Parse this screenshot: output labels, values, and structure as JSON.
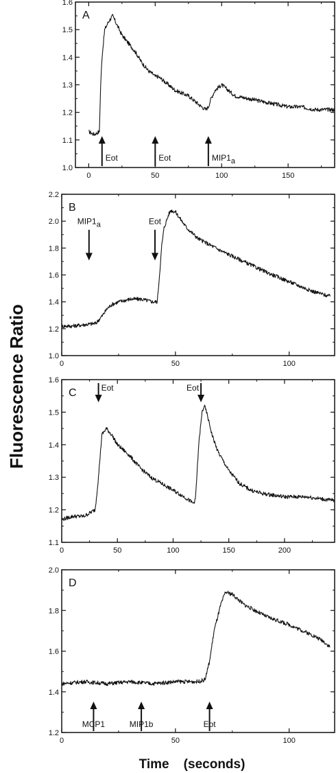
{
  "figure": {
    "ylabel": "Fluorescence  Ratio",
    "xlabel": "Time    (seconds)"
  },
  "chart_data": [
    {
      "type": "line",
      "panel": "A",
      "xlim": [
        -10,
        185
      ],
      "ylim": [
        1.0,
        1.6
      ],
      "xticks": [
        0,
        50,
        100,
        150
      ],
      "yticks": [
        1.0,
        1.1,
        1.2,
        1.3,
        1.4,
        1.5,
        1.6
      ],
      "series": [
        {
          "x": [
            0,
            4,
            8,
            9,
            10,
            12,
            15,
            18,
            21,
            25,
            30,
            35,
            40,
            45,
            48,
            50,
            52,
            55,
            60,
            65,
            70,
            75,
            80,
            85,
            88,
            90,
            92,
            95,
            100,
            105,
            110,
            120,
            130,
            140,
            150,
            160,
            170,
            180,
            185
          ],
          "y": [
            1.13,
            1.12,
            1.13,
            1.3,
            1.4,
            1.5,
            1.53,
            1.55,
            1.52,
            1.48,
            1.45,
            1.42,
            1.38,
            1.35,
            1.34,
            1.33,
            1.33,
            1.32,
            1.3,
            1.28,
            1.27,
            1.26,
            1.24,
            1.22,
            1.21,
            1.22,
            1.25,
            1.28,
            1.3,
            1.28,
            1.26,
            1.25,
            1.24,
            1.23,
            1.22,
            1.22,
            1.21,
            1.21,
            1.21
          ]
        }
      ],
      "annotations": [
        {
          "text": "Eot",
          "x": 10,
          "dir": "up"
        },
        {
          "text": "Eot",
          "x": 50,
          "dir": "up"
        },
        {
          "text": "MIP1",
          "sub": "a",
          "x": 90,
          "dir": "up"
        }
      ]
    },
    {
      "type": "line",
      "panel": "B",
      "xlim": [
        0,
        120
      ],
      "ylim": [
        1.0,
        2.2
      ],
      "xticks": [
        0,
        50,
        100
      ],
      "yticks": [
        1.0,
        1.2,
        1.4,
        1.6,
        1.8,
        2.0,
        2.2
      ],
      "series": [
        {
          "x": [
            0,
            5,
            10,
            15,
            18,
            20,
            22,
            25,
            30,
            35,
            40,
            42,
            43,
            44,
            45,
            47,
            48,
            50,
            52,
            55,
            60,
            70,
            80,
            90,
            100,
            110,
            118
          ],
          "y": [
            1.22,
            1.22,
            1.23,
            1.24,
            1.3,
            1.35,
            1.38,
            1.4,
            1.42,
            1.42,
            1.4,
            1.4,
            1.6,
            1.82,
            1.95,
            2.05,
            2.08,
            2.07,
            2.02,
            1.95,
            1.87,
            1.78,
            1.7,
            1.62,
            1.55,
            1.48,
            1.44
          ]
        }
      ],
      "annotations": [
        {
          "text": "MIP1",
          "sub": "a",
          "x": 12,
          "dir": "down"
        },
        {
          "text": "Eot",
          "x": 41,
          "dir": "down"
        }
      ]
    },
    {
      "type": "line",
      "panel": "C",
      "xlim": [
        0,
        245
      ],
      "ylim": [
        1.1,
        1.6
      ],
      "xticks": [
        0,
        50,
        100,
        150,
        200
      ],
      "yticks": [
        1.1,
        1.2,
        1.3,
        1.4,
        1.5,
        1.6
      ],
      "series": [
        {
          "x": [
            0,
            10,
            20,
            30,
            33,
            36,
            40,
            45,
            50,
            60,
            70,
            80,
            90,
            100,
            110,
            118,
            120,
            123,
            126,
            128,
            130,
            135,
            140,
            150,
            160,
            170,
            180,
            200,
            220,
            240,
            245
          ],
          "y": [
            1.17,
            1.18,
            1.18,
            1.2,
            1.3,
            1.43,
            1.45,
            1.43,
            1.4,
            1.37,
            1.33,
            1.3,
            1.28,
            1.26,
            1.24,
            1.22,
            1.23,
            1.4,
            1.5,
            1.52,
            1.5,
            1.43,
            1.38,
            1.32,
            1.28,
            1.26,
            1.25,
            1.24,
            1.24,
            1.23,
            1.23
          ]
        }
      ],
      "annotations": [
        {
          "text": "Eot",
          "x": 33,
          "dir": "down"
        },
        {
          "text": "Eot",
          "x": 125,
          "dir": "down"
        }
      ]
    },
    {
      "type": "line",
      "panel": "D",
      "xlim": [
        0,
        120
      ],
      "ylim": [
        1.2,
        2.0
      ],
      "xticks": [
        0,
        50,
        100
      ],
      "yticks": [
        1.2,
        1.4,
        1.6,
        1.8,
        2.0
      ],
      "series": [
        {
          "x": [
            0,
            10,
            20,
            30,
            40,
            50,
            55,
            60,
            63,
            65,
            67,
            70,
            72,
            75,
            80,
            85,
            90,
            100,
            110,
            115,
            118
          ],
          "y": [
            1.44,
            1.45,
            1.44,
            1.45,
            1.44,
            1.45,
            1.45,
            1.45,
            1.46,
            1.55,
            1.7,
            1.83,
            1.89,
            1.88,
            1.83,
            1.8,
            1.77,
            1.73,
            1.68,
            1.65,
            1.62
          ]
        }
      ],
      "annotations": [
        {
          "text": "MCP1",
          "x": 14,
          "dir": "up"
        },
        {
          "text": "MIP1b",
          "x": 35,
          "dir": "up"
        },
        {
          "text": "Eot",
          "x": 65,
          "dir": "up"
        }
      ]
    }
  ]
}
